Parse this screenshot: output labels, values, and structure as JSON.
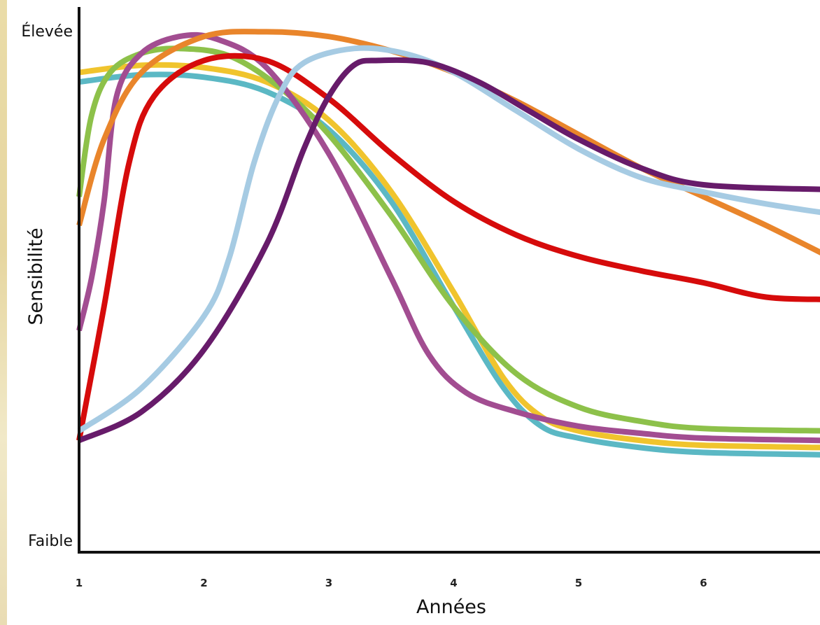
{
  "chart_data": {
    "type": "line",
    "title": "",
    "xlabel": "Années",
    "ylabel": "Sensibilité",
    "y_top_label": "Élevée",
    "y_bottom_label": "Faible",
    "x_ticks": [
      "1",
      "2",
      "3",
      "4",
      "5",
      "6"
    ],
    "xlim": [
      1,
      7
    ],
    "ylim": [
      0,
      100
    ],
    "grid": false,
    "legend": "none",
    "series": [
      {
        "color": "#5bb8c4",
        "x": [
          1,
          1.5,
          2,
          2.5,
          3,
          3.5,
          4,
          4.4,
          4.7,
          5,
          5.5,
          6,
          7
        ],
        "y": [
          89,
          90.5,
          90,
          87,
          79,
          64,
          42,
          25,
          17,
          14.5,
          12.5,
          11.5,
          11
        ]
      },
      {
        "color": "#f0c42d",
        "x": [
          1,
          1.5,
          2,
          2.5,
          3,
          3.5,
          4,
          4.4,
          4.7,
          5,
          5.5,
          6,
          7
        ],
        "y": [
          91,
          92.5,
          92,
          89,
          81,
          66,
          45,
          27,
          19,
          16,
          14,
          13,
          12.5
        ]
      },
      {
        "color": "#8dc14a",
        "x": [
          1,
          1.1,
          1.25,
          1.5,
          1.8,
          2.2,
          2.6,
          3,
          3.5,
          4,
          4.5,
          5,
          5.5,
          6,
          7
        ],
        "y": [
          65,
          82,
          91,
          95,
          96,
          94.5,
          88,
          78,
          61,
          42,
          28,
          21,
          18,
          16.5,
          16
        ]
      },
      {
        "color": "#a24d91",
        "x": [
          1,
          1.1,
          1.2,
          1.3,
          1.5,
          1.8,
          2.1,
          2.5,
          3,
          3.5,
          3.8,
          4.1,
          4.5,
          5,
          5.5,
          6,
          7
        ],
        "y": [
          37,
          48,
          64,
          86,
          95,
          98.5,
          98,
          92,
          74,
          48,
          32,
          24,
          20,
          17,
          15.5,
          14.5,
          14
        ]
      },
      {
        "color": "#e9852b",
        "x": [
          1,
          1.2,
          1.5,
          2,
          2.5,
          3,
          3.5,
          4,
          4.5,
          5,
          5.5,
          6,
          6.5,
          7
        ],
        "y": [
          59,
          77,
          91,
          98.5,
          99.5,
          98.5,
          95.5,
          91,
          85,
          78,
          71,
          65,
          59,
          52.5
        ]
      },
      {
        "color": "#d60b0b",
        "x": [
          1,
          1.2,
          1.4,
          1.6,
          2,
          2.5,
          3,
          3.5,
          4,
          4.5,
          5,
          5.5,
          6,
          6.5,
          7
        ],
        "y": [
          14,
          42,
          72,
          86,
          93.5,
          93.5,
          85.5,
          74,
          64,
          57,
          52.5,
          49.5,
          47,
          44,
          43.5
        ]
      },
      {
        "color": "#a6cbe3",
        "x": [
          1,
          1.5,
          2,
          2.2,
          2.4,
          2.6,
          2.8,
          3.2,
          3.6,
          4,
          4.5,
          5,
          5.5,
          6,
          6.5,
          7
        ],
        "y": [
          16,
          25,
          40,
          52,
          72,
          86,
          93,
          96,
          95,
          91,
          83,
          75,
          69,
          66,
          63.5,
          61.5
        ]
      },
      {
        "color": "#671b6a",
        "x": [
          1,
          1.5,
          2,
          2.5,
          2.8,
          3,
          3.2,
          3.4,
          3.8,
          4.2,
          4.6,
          5,
          5.5,
          6,
          7
        ],
        "y": [
          14,
          20,
          33,
          55,
          75,
          86,
          92.5,
          93.5,
          93,
          89,
          83,
          77,
          71,
          67.5,
          66.5
        ]
      }
    ]
  }
}
